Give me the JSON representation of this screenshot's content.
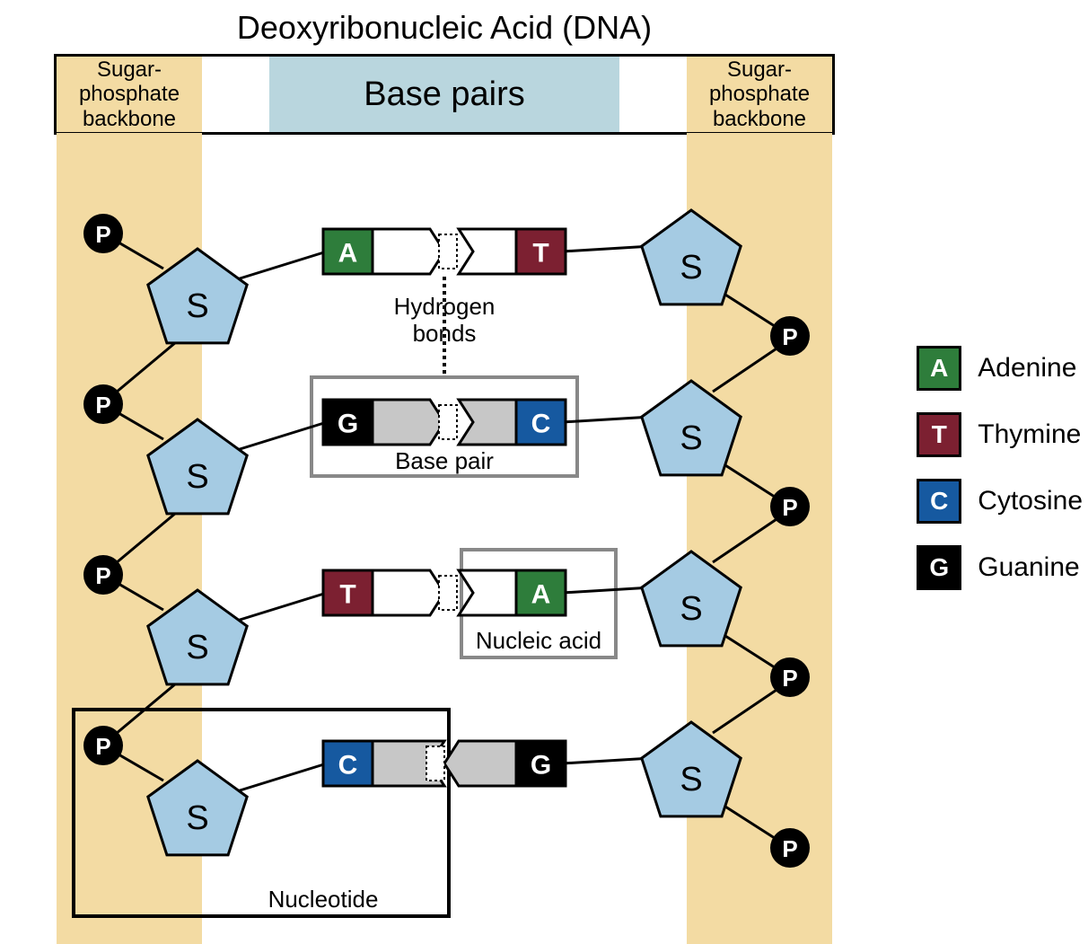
{
  "title": "Deoxyribonucleic Acid (DNA)",
  "header": {
    "left": "Sugar-\nphosphate\nbackbone",
    "center": "Base pairs",
    "right": "Sugar-\nphosphate\nbackbone"
  },
  "colors": {
    "backbone": "#f3dba3",
    "basepair_bg": "#b9d6de",
    "sugar": "#a5cbe3",
    "phosphate": "#000000",
    "adenine": "#2e7d3b",
    "thymine": "#7c2031",
    "cytosine": "#1659a0",
    "guanine": "#000000",
    "white": "#ffffff",
    "gray": "#c7c7c7",
    "annotation_gray": "#888888"
  },
  "bases": {
    "A": {
      "letter": "A",
      "name": "Adenine",
      "color": "#2e7d3b"
    },
    "T": {
      "letter": "T",
      "name": "Thymine",
      "color": "#7c2031"
    },
    "C": {
      "letter": "C",
      "name": "Cytosine",
      "color": "#1659a0"
    },
    "G": {
      "letter": "G",
      "name": "Guanine",
      "color": "#000000"
    }
  },
  "labels": {
    "hydrogen_bonds": "Hydrogen bonds",
    "base_pair": "Base pair",
    "nucleic_acid": "Nucleic acid",
    "nucleotide": "Nucleotide",
    "sugar": "S",
    "phosphate": "P"
  },
  "pairs": [
    {
      "left": "A",
      "right": "T",
      "left_fill": "white",
      "right_fill": "white"
    },
    {
      "left": "G",
      "right": "C",
      "left_fill": "gray",
      "right_fill": "gray"
    },
    {
      "left": "T",
      "right": "A",
      "left_fill": "white",
      "right_fill": "white"
    },
    {
      "left": "C",
      "right": "G",
      "left_fill": "gray",
      "right_fill": "gray",
      "flip": true
    }
  ],
  "legend_order": [
    "A",
    "T",
    "C",
    "G"
  ]
}
